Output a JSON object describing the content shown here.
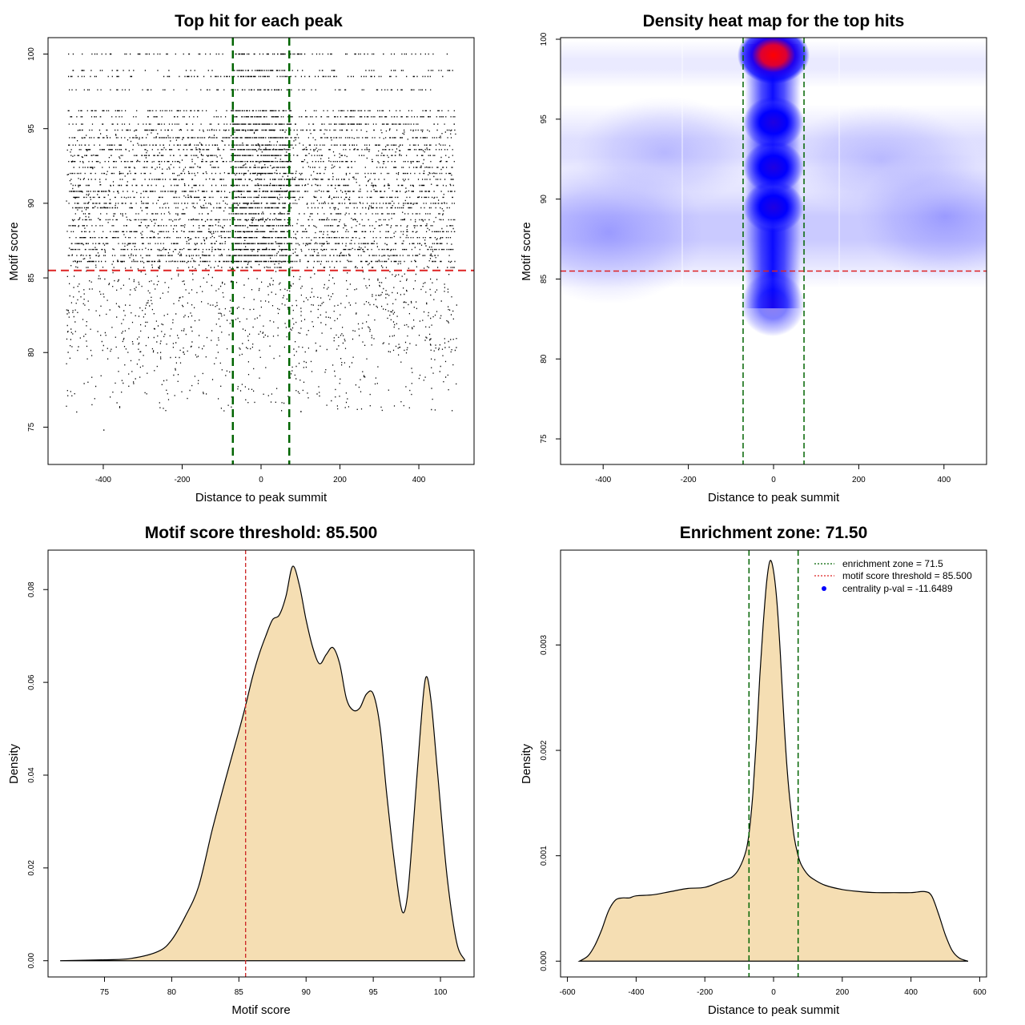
{
  "chart_data": [
    {
      "type": "scatter",
      "title": "Top hit for each peak",
      "xlabel": "Distance to peak summit",
      "ylabel": "Motif score",
      "xlim": [
        -540,
        540
      ],
      "ylim": [
        72.5,
        101.1
      ],
      "xticks": [
        -400,
        -200,
        0,
        200,
        400
      ],
      "yticks": [
        75,
        80,
        85,
        90,
        95,
        100
      ],
      "xtick_labels": [
        "-400",
        "-200",
        "0",
        "200",
        "400"
      ],
      "ytick_labels": [
        "75",
        "80",
        "85",
        "90",
        "95",
        "100"
      ],
      "enrichment_zone": [
        -71.5,
        71.5
      ],
      "threshold": 85.5,
      "point_color": "#000000",
      "zone_color": "#006400",
      "threshold_color": "#dd2222"
    },
    {
      "type": "heatmap",
      "title": "Density heat map for the top hits",
      "xlabel": "Distance to peak summit",
      "ylabel": "Motif score",
      "xlim": [
        -500,
        500
      ],
      "ylim": [
        73.4,
        100.1
      ],
      "xticks": [
        -400,
        -200,
        0,
        200,
        400
      ],
      "yticks": [
        75,
        80,
        85,
        90,
        95,
        100
      ],
      "xtick_labels": [
        "-400",
        "-200",
        "0",
        "200",
        "400"
      ],
      "ytick_labels": [
        "75",
        "80",
        "85",
        "90",
        "95",
        "100"
      ],
      "enrichment_zone": [
        -71.5,
        71.5
      ],
      "threshold": 85.5,
      "colors": [
        "#ffffff",
        "#0000ff",
        "#ff0000"
      ],
      "hotspots": [
        {
          "x": 0,
          "y": 99.0,
          "level": "max"
        },
        {
          "x": 0,
          "y": 94.8,
          "level": "high"
        },
        {
          "x": 0,
          "y": 92.0,
          "level": "high"
        },
        {
          "x": 0,
          "y": 89.5,
          "level": "high"
        }
      ]
    },
    {
      "type": "area",
      "title": "Motif score threshold: 85.500",
      "xlabel": "Motif score",
      "ylabel": "Density",
      "xlim": [
        70.8,
        102.5
      ],
      "ylim": [
        -0.0035,
        0.0885
      ],
      "xticks": [
        75,
        80,
        85,
        90,
        95,
        100
      ],
      "yticks": [
        0.0,
        0.02,
        0.04,
        0.06,
        0.08
      ],
      "xtick_labels": [
        "75",
        "80",
        "85",
        "90",
        "95",
        "100"
      ],
      "ytick_labels": [
        "0.00",
        "0.02",
        "0.04",
        "0.06",
        "0.08"
      ],
      "threshold": 85.5,
      "fill_color": "#f5deb3",
      "x": [
        71.7,
        75.0,
        77.0,
        79.0,
        80.0,
        81.0,
        82.0,
        83.0,
        84.0,
        85.0,
        85.5,
        86.0,
        86.5,
        87.0,
        87.5,
        88.0,
        88.5,
        89.0,
        89.5,
        90.0,
        90.5,
        91.0,
        91.5,
        92.0,
        92.5,
        93.0,
        93.5,
        94.0,
        94.5,
        95.0,
        95.5,
        96.0,
        96.5,
        97.0,
        97.3,
        97.6,
        98.0,
        98.5,
        98.9,
        99.3,
        99.8,
        100.5,
        101.2,
        101.8
      ],
      "values": [
        0.0,
        0.0002,
        0.0005,
        0.002,
        0.0045,
        0.0095,
        0.016,
        0.028,
        0.039,
        0.0495,
        0.055,
        0.061,
        0.066,
        0.07,
        0.0735,
        0.0745,
        0.0785,
        0.085,
        0.081,
        0.0735,
        0.0675,
        0.064,
        0.066,
        0.0675,
        0.064,
        0.0565,
        0.054,
        0.0545,
        0.0575,
        0.0575,
        0.0505,
        0.036,
        0.023,
        0.0125,
        0.0105,
        0.0155,
        0.03,
        0.0495,
        0.061,
        0.056,
        0.04,
        0.018,
        0.004,
        0.0002
      ]
    },
    {
      "type": "area",
      "title": "Enrichment zone: 71.50",
      "xlabel": "Distance to peak summit",
      "ylabel": "Density",
      "xlim": [
        -620,
        620
      ],
      "ylim": [
        -0.00015,
        0.0039
      ],
      "xticks": [
        -600,
        -400,
        -200,
        0,
        200,
        400,
        600
      ],
      "yticks": [
        0.0,
        0.001,
        0.002,
        0.003
      ],
      "xtick_labels": [
        "-600",
        "-400",
        "-200",
        "0",
        "200",
        "400",
        "600"
      ],
      "ytick_labels": [
        "0.000",
        "0.001",
        "0.002",
        "0.003"
      ],
      "enrichment_zone": [
        -71.5,
        71.5
      ],
      "fill_color": "#f5deb3",
      "x": [
        -565,
        -540,
        -520,
        -500,
        -480,
        -460,
        -440,
        -420,
        -400,
        -350,
        -300,
        -250,
        -200,
        -150,
        -120,
        -100,
        -80,
        -70,
        -60,
        -50,
        -40,
        -30,
        -20,
        -10,
        0,
        10,
        20,
        30,
        40,
        50,
        60,
        70,
        80,
        100,
        120,
        150,
        200,
        250,
        300,
        350,
        400,
        440,
        460,
        480,
        500,
        520,
        540,
        565
      ],
      "values": [
        0.0,
        5e-05,
        0.00015,
        0.0003,
        0.00048,
        0.00058,
        0.0006,
        0.0006,
        0.00062,
        0.00063,
        0.00066,
        0.00069,
        0.0007,
        0.00076,
        0.0008,
        0.00088,
        0.00105,
        0.00125,
        0.0016,
        0.0021,
        0.0027,
        0.0032,
        0.0036,
        0.0038,
        0.0037,
        0.0034,
        0.0029,
        0.0023,
        0.0018,
        0.00145,
        0.00118,
        0.00102,
        0.00092,
        0.00082,
        0.00077,
        0.00072,
        0.00068,
        0.00066,
        0.00065,
        0.00065,
        0.00065,
        0.00066,
        0.00062,
        0.00045,
        0.00025,
        0.0001,
        3e-05,
        0.0
      ],
      "legend": [
        {
          "label": "enrichment zone = 71.5",
          "style": "dotted-line",
          "color": "#006400"
        },
        {
          "label": "motif score threshold = 85.500",
          "style": "dotted-line",
          "color": "#dd2222"
        },
        {
          "label": "centrality p-val = -11.6489",
          "style": "point",
          "color": "#0000ff"
        }
      ],
      "legend_position": "top-right"
    }
  ]
}
